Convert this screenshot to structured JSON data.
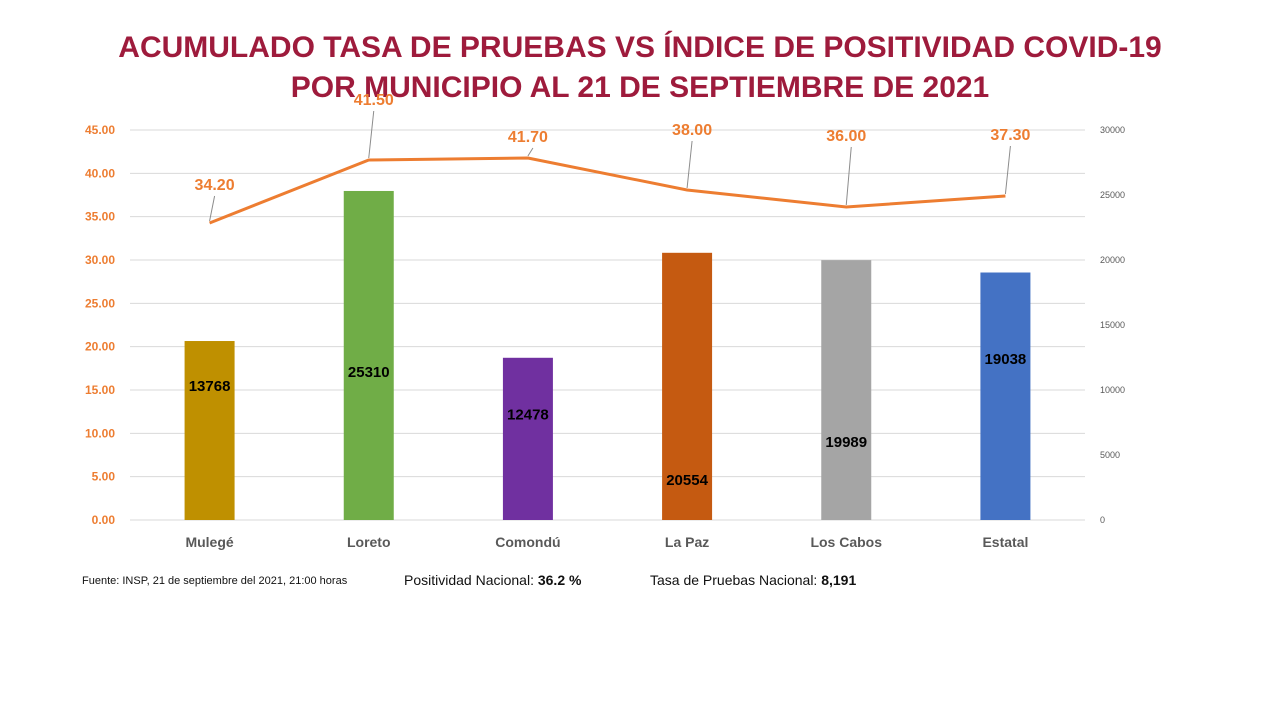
{
  "title": {
    "line1": "ACUMULADO TASA DE PRUEBAS  VS ÍNDICE DE POSITIVIDAD  COVID-19",
    "line2": "POR MUNICIPIO  AL 21 DE SEPTIEMBRE  DE 2021"
  },
  "footer": {
    "source": "Fuente: INSP, 21 de septiembre  del 2021, 21:00 horas",
    "positividad_label": "Positividad Nacional: ",
    "positividad_value": "36.2  %",
    "tasa_label": "Tasa de Pruebas Nacional: ",
    "tasa_value": "8,191"
  },
  "colors": {
    "title": "#9e1b3c",
    "line": "#ed7d31",
    "left_axis_text": "#ed7d31",
    "right_axis_text": "#595959",
    "category_text": "#595959",
    "gridline": "#d9d9d9"
  },
  "chart_data": {
    "type": "bar+line",
    "categories": [
      "Mulegé",
      "Loreto",
      "Comondú",
      "La Paz",
      "Los Cabos",
      "Estatal"
    ],
    "bar_series": {
      "values": [
        13768,
        25310,
        12478,
        20554,
        19989,
        19038
      ],
      "labels": [
        "13768",
        "25310",
        "12478",
        "20554",
        "19989",
        "19038"
      ],
      "colors": [
        "#bf9000",
        "#70ad47",
        "#7030a0",
        "#c55a11",
        "#a5a5a5",
        "#4472c4"
      ],
      "axis": "right"
    },
    "line_series": {
      "values": [
        34.2,
        41.5,
        41.7,
        38.0,
        36.0,
        37.3
      ],
      "labels": [
        "34.20",
        "41.50",
        "41.70",
        "38.00",
        "36.00",
        "37.30"
      ],
      "axis": "left"
    },
    "left_axis": {
      "min": 0,
      "max": 45,
      "ticks": [
        "0.00",
        "5.00",
        "10.00",
        "15.00",
        "20.00",
        "25.00",
        "30.00",
        "35.00",
        "40.00",
        "45.00"
      ]
    },
    "right_axis": {
      "min": 0,
      "max": 30000,
      "ticks": [
        "0",
        "5000",
        "10000",
        "15000",
        "20000",
        "25000",
        "30000"
      ]
    },
    "grid": true
  }
}
